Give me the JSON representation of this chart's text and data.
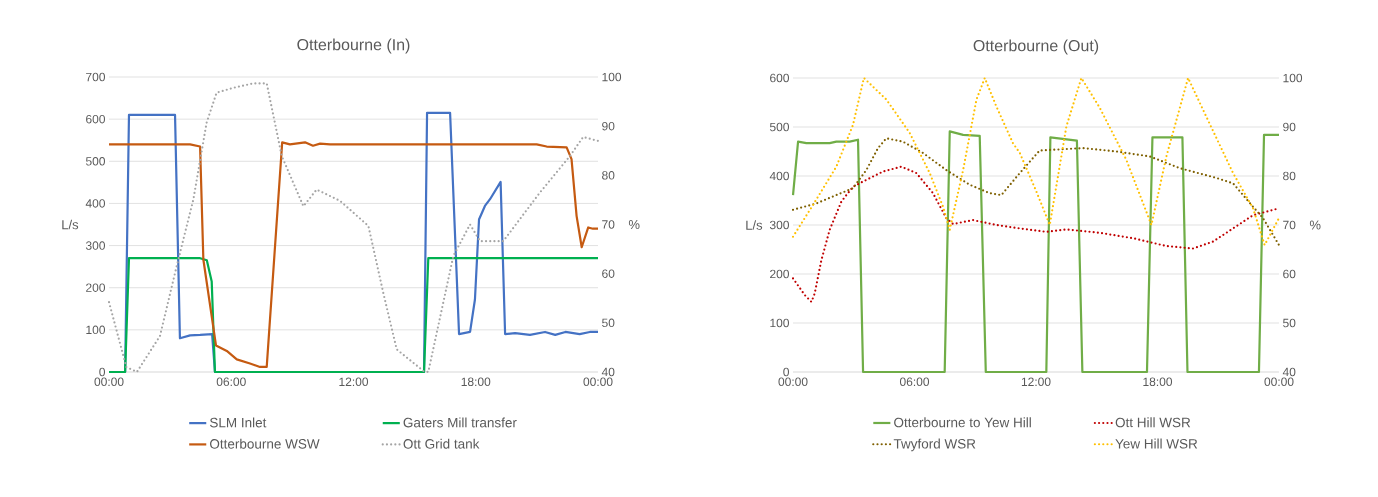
{
  "chart_data": [
    {
      "type": "line",
      "title": "Otterbourne (In)",
      "ylabel": "L/s",
      "y2label": "%",
      "xlim": [
        0,
        24
      ],
      "xticks": [
        {
          "value": 0,
          "label": "00:00"
        },
        {
          "value": 6,
          "label": "06:00"
        },
        {
          "value": 12,
          "label": "12:00"
        },
        {
          "value": 18,
          "label": "18:00"
        },
        {
          "value": 24,
          "label": "00:00"
        }
      ],
      "ylim": [
        0,
        700
      ],
      "yticks": [
        0,
        100,
        200,
        300,
        400,
        500,
        600,
        700
      ],
      "y2lim": [
        40,
        100
      ],
      "y2ticks": [
        40,
        50,
        60,
        70,
        80,
        90,
        100
      ],
      "grid": "y",
      "legend": "bottom",
      "series": [
        {
          "name": "SLM Inlet",
          "color": "#4472c4",
          "line_style": "solid",
          "x": [
            0,
            0.79,
            0.98,
            3.24,
            3.48,
            3.98,
            4.47,
            5.06,
            5.2,
            15.46,
            15.61,
            16.74,
            17.18,
            17.72,
            17.96,
            18.16,
            18.45,
            18.7,
            19.22,
            19.44,
            19.93,
            20.66,
            21.4,
            21.9,
            22.4,
            23.1,
            23.6,
            24
          ],
          "values": [
            0,
            0,
            610,
            610,
            80,
            87,
            88,
            90,
            0,
            0,
            615,
            615,
            90,
            95,
            172,
            362,
            394,
            410,
            451,
            90,
            92,
            88,
            95,
            88,
            95,
            90,
            95,
            95
          ]
        },
        {
          "name": "Gaters Mill transfer",
          "color": "#00b050",
          "line_style": "solid",
          "x": [
            0,
            0.79,
            0.98,
            4.47,
            4.8,
            5.04,
            5.2,
            15.46,
            15.67,
            24
          ],
          "values": [
            0,
            0,
            270,
            270,
            265,
            215,
            0,
            0,
            270,
            270
          ]
        },
        {
          "name": "Otterbourne WSW",
          "color": "#c55a11",
          "line_style": "solid",
          "x": [
            0,
            3.98,
            4.47,
            4.63,
            5.25,
            5.78,
            6.27,
            6.92,
            7.41,
            7.74,
            8.5,
            8.88,
            9.62,
            10.01,
            10.36,
            10.85,
            20.99,
            21.48,
            22.46,
            22.7,
            22.95,
            23.2,
            23.52,
            23.75,
            24
          ],
          "values": [
            540,
            540,
            535,
            267,
            63,
            50,
            30,
            20,
            12,
            12,
            545,
            540,
            545,
            537,
            542,
            540,
            540,
            535,
            533,
            505,
            370,
            296,
            343,
            340,
            340
          ]
        },
        {
          "name": "Ott Grid tank",
          "color": "#a5a5a5",
          "line_style": "dotted",
          "axis": "y2",
          "x": [
            0,
            0.85,
            1.37,
            2.5,
            3.32,
            4.14,
            4.79,
            5.28,
            6.1,
            7.08,
            7.74,
            8.48,
            9.54,
            10.19,
            11.34,
            12.73,
            13.46,
            14.12,
            15.43,
            15.67,
            16.9,
            17.72,
            18.21,
            19.35,
            21.15,
            22.62,
            23.27,
            24
          ],
          "values": [
            54.2,
            41,
            40,
            47.3,
            61.5,
            75.1,
            90.7,
            96.8,
            97.8,
            98.7,
            98.7,
            83.9,
            73.7,
            77.1,
            74.8,
            69.7,
            56.1,
            44.6,
            40.2,
            40,
            63.6,
            70,
            66.6,
            66.6,
            76.5,
            83.9,
            87.8,
            87
          ]
        }
      ]
    },
    {
      "type": "line",
      "title": "Otterbourne (Out)",
      "ylabel": "L/s",
      "y2label": "%",
      "xlim": [
        0,
        24
      ],
      "xticks": [
        {
          "value": 0,
          "label": "00:00"
        },
        {
          "value": 6,
          "label": "06:00"
        },
        {
          "value": 12,
          "label": "12:00"
        },
        {
          "value": 18,
          "label": "18:00"
        },
        {
          "value": 24,
          "label": "00:00"
        }
      ],
      "ylim": [
        0,
        600
      ],
      "yticks": [
        0,
        100,
        200,
        300,
        400,
        500,
        600
      ],
      "y2lim": [
        40,
        100
      ],
      "y2ticks": [
        40,
        50,
        60,
        70,
        80,
        90,
        100
      ],
      "grid": "y",
      "legend": "bottom",
      "series": [
        {
          "name": "Otterbourne to Yew Hill",
          "color": "#70ad47",
          "line_style": "solid",
          "x": [
            0,
            0.25,
            0.66,
            1.81,
            2.14,
            2.8,
            3.21,
            3.46,
            7.49,
            7.74,
            8.4,
            9.22,
            9.52,
            12.51,
            12.71,
            14.02,
            14.29,
            17.48,
            17.75,
            19.23,
            19.48,
            23.01,
            23.26,
            24
          ],
          "values": [
            361,
            470,
            467,
            467,
            470,
            470,
            474,
            0,
            0,
            491,
            484,
            482,
            0,
            0,
            479,
            472,
            0,
            0,
            479,
            479,
            0,
            0,
            484,
            484
          ]
        },
        {
          "name": "Ott Hill WSR",
          "color": "#c00000",
          "line_style": "dotted",
          "axis": "y2",
          "x": [
            0,
            0.58,
            0.91,
            1.07,
            1.4,
            1.81,
            2.39,
            2.96,
            3.62,
            4.44,
            5.35,
            6.09,
            6.91,
            7.57,
            7.9,
            8.89,
            10.04,
            11.2,
            12.51,
            13.5,
            15.15,
            16.79,
            18.44,
            19.75,
            20.74,
            21.73,
            22.72,
            24
          ],
          "values": [
            59.1,
            55.7,
            54.3,
            56,
            62.8,
            69,
            74.8,
            77.8,
            79.2,
            80.9,
            81.9,
            80.6,
            76.5,
            71.4,
            70.2,
            71,
            70,
            69.3,
            68.6,
            69.1,
            68.4,
            67.3,
            65.7,
            65.2,
            66.6,
            69.3,
            72,
            73.4
          ]
        },
        {
          "name": "Twyford WSR",
          "color": "#7f6000",
          "line_style": "dotted",
          "axis": "y2",
          "x": [
            0,
            1.16,
            2.14,
            2.96,
            3.62,
            4.2,
            4.61,
            5.43,
            6.42,
            7.57,
            8.73,
            9.71,
            10.29,
            11.2,
            12.18,
            13.5,
            14.32,
            15.97,
            17.61,
            19.1,
            20.91,
            21.73,
            22.72,
            23.21,
            24
          ],
          "values": [
            73.1,
            74.4,
            76.1,
            77.5,
            81.2,
            85.7,
            87.7,
            87,
            84.7,
            81.2,
            78.2,
            76.5,
            76.1,
            80.6,
            85.2,
            85.5,
            85.7,
            85,
            84,
            81.6,
            79.6,
            78.5,
            73.7,
            71.4,
            65.9
          ]
        },
        {
          "name": "Yew Hill WSR",
          "color": "#ffc000",
          "line_style": "dotted",
          "axis": "y2",
          "x": [
            0,
            0.99,
            2.14,
            2.96,
            3.5,
            4.61,
            5.76,
            6.75,
            7.41,
            7.74,
            8.4,
            9.06,
            9.47,
            10.04,
            10.86,
            11.2,
            12.02,
            12.68,
            13.5,
            14.24,
            15.15,
            16.46,
            17.7,
            18.44,
            19.51,
            20.41,
            21.73,
            22.72,
            23.29,
            24
          ],
          "values": [
            67.6,
            74.1,
            81.9,
            90.4,
            100,
            95.6,
            88.8,
            80.6,
            73.7,
            69,
            81.2,
            95.6,
            100,
            94.2,
            86.7,
            84.7,
            76.8,
            70,
            90.1,
            100,
            93.9,
            83.3,
            70,
            84,
            100,
            92.1,
            80.6,
            73.4,
            65.9,
            71.4
          ]
        }
      ]
    }
  ]
}
